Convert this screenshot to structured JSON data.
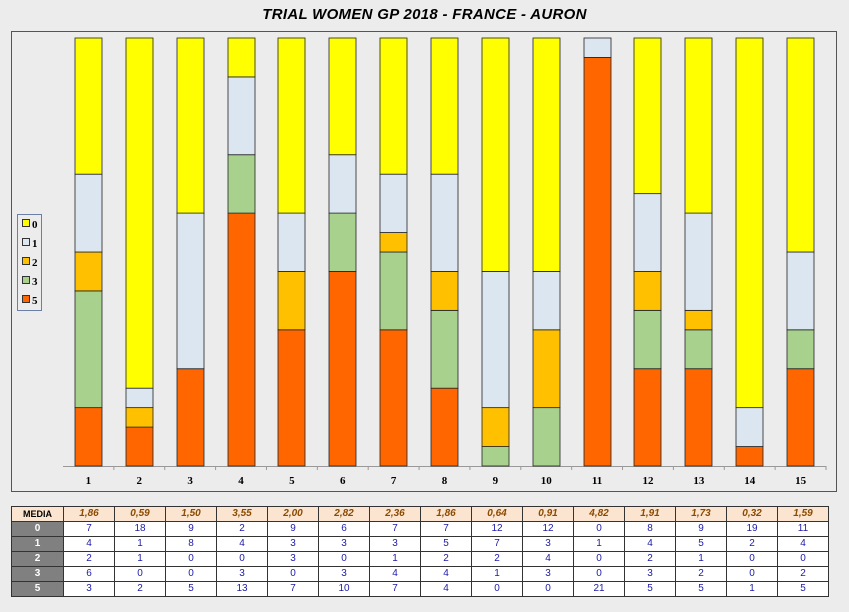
{
  "title": "TRIAL WOMEN GP 2018 - FRANCE - AURON",
  "colors": {
    "0": "#ffff00",
    "1": "#dce6f1",
    "2": "#ffc000",
    "3": "#a9d18e",
    "5": "#ff6600"
  },
  "legend": [
    "0",
    "1",
    "2",
    "3",
    "5"
  ],
  "table": {
    "media_label": "MEDIA",
    "row_labels": [
      "0",
      "1",
      "2",
      "3",
      "5"
    ],
    "media": [
      "1,86",
      "0,59",
      "1,50",
      "3,55",
      "2,00",
      "2,82",
      "2,36",
      "1,86",
      "0,64",
      "0,91",
      "4,82",
      "1,91",
      "1,73",
      "0,32",
      "1,59"
    ]
  },
  "chart_data": {
    "type": "bar",
    "stacked": true,
    "percent": true,
    "categories": [
      "1",
      "2",
      "3",
      "4",
      "5",
      "6",
      "7",
      "8",
      "9",
      "10",
      "11",
      "12",
      "13",
      "14",
      "15"
    ],
    "series": [
      {
        "name": "5",
        "values": [
          3,
          2,
          5,
          13,
          7,
          10,
          7,
          4,
          0,
          0,
          21,
          5,
          5,
          1,
          5
        ]
      },
      {
        "name": "3",
        "values": [
          6,
          0,
          0,
          3,
          0,
          3,
          4,
          4,
          1,
          3,
          0,
          3,
          2,
          0,
          2
        ]
      },
      {
        "name": "2",
        "values": [
          2,
          1,
          0,
          0,
          3,
          0,
          1,
          2,
          2,
          4,
          0,
          2,
          1,
          0,
          0
        ]
      },
      {
        "name": "1",
        "values": [
          4,
          1,
          8,
          4,
          3,
          3,
          3,
          5,
          7,
          3,
          1,
          4,
          5,
          2,
          4
        ]
      },
      {
        "name": "0",
        "values": [
          7,
          18,
          9,
          2,
          9,
          6,
          7,
          7,
          12,
          12,
          0,
          8,
          9,
          19,
          11
        ]
      }
    ],
    "legend_position": "left"
  }
}
